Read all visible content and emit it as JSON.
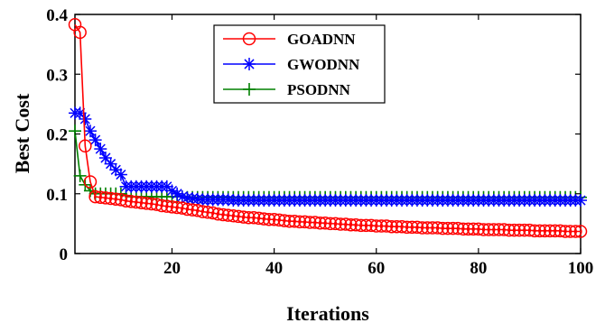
{
  "chart_data": {
    "type": "line",
    "title": "",
    "xlabel": "Iterations",
    "ylabel": "Best Cost",
    "xlim": [
      1,
      100
    ],
    "ylim": [
      0,
      0.4
    ],
    "xticks": [
      20,
      40,
      60,
      80,
      100
    ],
    "yticks": [
      0,
      0.1,
      0.2,
      0.3,
      0.4
    ],
    "x_tick_labels": [
      "20",
      "40",
      "60",
      "80",
      "100"
    ],
    "y_tick_labels": [
      "0",
      "0.1",
      "0.2",
      "0.3",
      "0.4"
    ],
    "grid": false,
    "legend_position": "top-center",
    "x": [
      1,
      2,
      3,
      4,
      5,
      6,
      7,
      8,
      9,
      10,
      11,
      12,
      13,
      14,
      15,
      16,
      17,
      18,
      19,
      20,
      21,
      22,
      23,
      24,
      25,
      26,
      27,
      28,
      29,
      30,
      31,
      32,
      33,
      34,
      35,
      36,
      37,
      38,
      39,
      40,
      41,
      42,
      43,
      44,
      45,
      46,
      47,
      48,
      49,
      50,
      51,
      52,
      53,
      54,
      55,
      56,
      57,
      58,
      59,
      60,
      61,
      62,
      63,
      64,
      65,
      66,
      67,
      68,
      69,
      70,
      71,
      72,
      73,
      74,
      75,
      76,
      77,
      78,
      79,
      80,
      81,
      82,
      83,
      84,
      85,
      86,
      87,
      88,
      89,
      90,
      91,
      92,
      93,
      94,
      95,
      96,
      97,
      98,
      99,
      100
    ],
    "series": [
      {
        "name": "GOADNN",
        "color": "#ff0000",
        "marker": "circle",
        "values": [
          0.383,
          0.37,
          0.18,
          0.12,
          0.095,
          0.094,
          0.093,
          0.092,
          0.091,
          0.09,
          0.088,
          0.087,
          0.086,
          0.085,
          0.084,
          0.083,
          0.082,
          0.08,
          0.079,
          0.078,
          0.077,
          0.076,
          0.074,
          0.073,
          0.072,
          0.07,
          0.069,
          0.068,
          0.066,
          0.065,
          0.064,
          0.063,
          0.062,
          0.061,
          0.06,
          0.06,
          0.059,
          0.058,
          0.057,
          0.057,
          0.056,
          0.055,
          0.054,
          0.054,
          0.053,
          0.053,
          0.052,
          0.052,
          0.051,
          0.051,
          0.05,
          0.05,
          0.049,
          0.049,
          0.048,
          0.048,
          0.047,
          0.047,
          0.047,
          0.046,
          0.046,
          0.046,
          0.045,
          0.045,
          0.045,
          0.044,
          0.044,
          0.044,
          0.043,
          0.043,
          0.043,
          0.043,
          0.042,
          0.042,
          0.042,
          0.042,
          0.041,
          0.041,
          0.041,
          0.041,
          0.04,
          0.04,
          0.04,
          0.04,
          0.04,
          0.039,
          0.039,
          0.039,
          0.039,
          0.039,
          0.038,
          0.038,
          0.038,
          0.038,
          0.038,
          0.038,
          0.037,
          0.037,
          0.037,
          0.037
        ]
      },
      {
        "name": "GWODNN",
        "color": "#0000ff",
        "marker": "asterisk",
        "values": [
          0.235,
          0.235,
          0.225,
          0.205,
          0.19,
          0.175,
          0.16,
          0.15,
          0.14,
          0.132,
          0.112,
          0.112,
          0.112,
          0.112,
          0.112,
          0.112,
          0.112,
          0.112,
          0.112,
          0.105,
          0.1,
          0.095,
          0.093,
          0.092,
          0.091,
          0.09,
          0.09,
          0.09,
          0.09,
          0.09,
          0.09,
          0.089,
          0.089,
          0.089,
          0.089,
          0.089,
          0.089,
          0.089,
          0.089,
          0.089,
          0.089,
          0.089,
          0.089,
          0.089,
          0.089,
          0.089,
          0.089,
          0.089,
          0.089,
          0.089,
          0.089,
          0.089,
          0.089,
          0.089,
          0.089,
          0.089,
          0.089,
          0.089,
          0.089,
          0.089,
          0.089,
          0.089,
          0.089,
          0.089,
          0.089,
          0.089,
          0.089,
          0.089,
          0.089,
          0.089,
          0.089,
          0.089,
          0.089,
          0.089,
          0.089,
          0.089,
          0.089,
          0.089,
          0.089,
          0.089,
          0.089,
          0.089,
          0.089,
          0.089,
          0.089,
          0.089,
          0.089,
          0.089,
          0.089,
          0.089,
          0.089,
          0.089,
          0.089,
          0.089,
          0.089,
          0.089,
          0.089,
          0.089,
          0.089,
          0.089
        ]
      },
      {
        "name": "PSODNN",
        "color": "#008000",
        "marker": "plus",
        "values": [
          0.205,
          0.13,
          0.115,
          0.105,
          0.1,
          0.1,
          0.1,
          0.1,
          0.1,
          0.1,
          0.097,
          0.095,
          0.095,
          0.095,
          0.095,
          0.095,
          0.095,
          0.095,
          0.095,
          0.095,
          0.095,
          0.095,
          0.094,
          0.094,
          0.094,
          0.094,
          0.094,
          0.094,
          0.094,
          0.094,
          0.094,
          0.094,
          0.094,
          0.094,
          0.094,
          0.094,
          0.094,
          0.094,
          0.094,
          0.094,
          0.094,
          0.094,
          0.094,
          0.094,
          0.094,
          0.094,
          0.094,
          0.094,
          0.094,
          0.094,
          0.094,
          0.094,
          0.094,
          0.094,
          0.094,
          0.094,
          0.094,
          0.094,
          0.094,
          0.094,
          0.094,
          0.094,
          0.094,
          0.094,
          0.094,
          0.094,
          0.094,
          0.094,
          0.094,
          0.094,
          0.094,
          0.094,
          0.094,
          0.094,
          0.094,
          0.094,
          0.094,
          0.094,
          0.094,
          0.094,
          0.094,
          0.094,
          0.094,
          0.094,
          0.094,
          0.094,
          0.094,
          0.094,
          0.094,
          0.094,
          0.094,
          0.094,
          0.094,
          0.094,
          0.094,
          0.094,
          0.094,
          0.094,
          0.094,
          0.094
        ]
      }
    ]
  }
}
